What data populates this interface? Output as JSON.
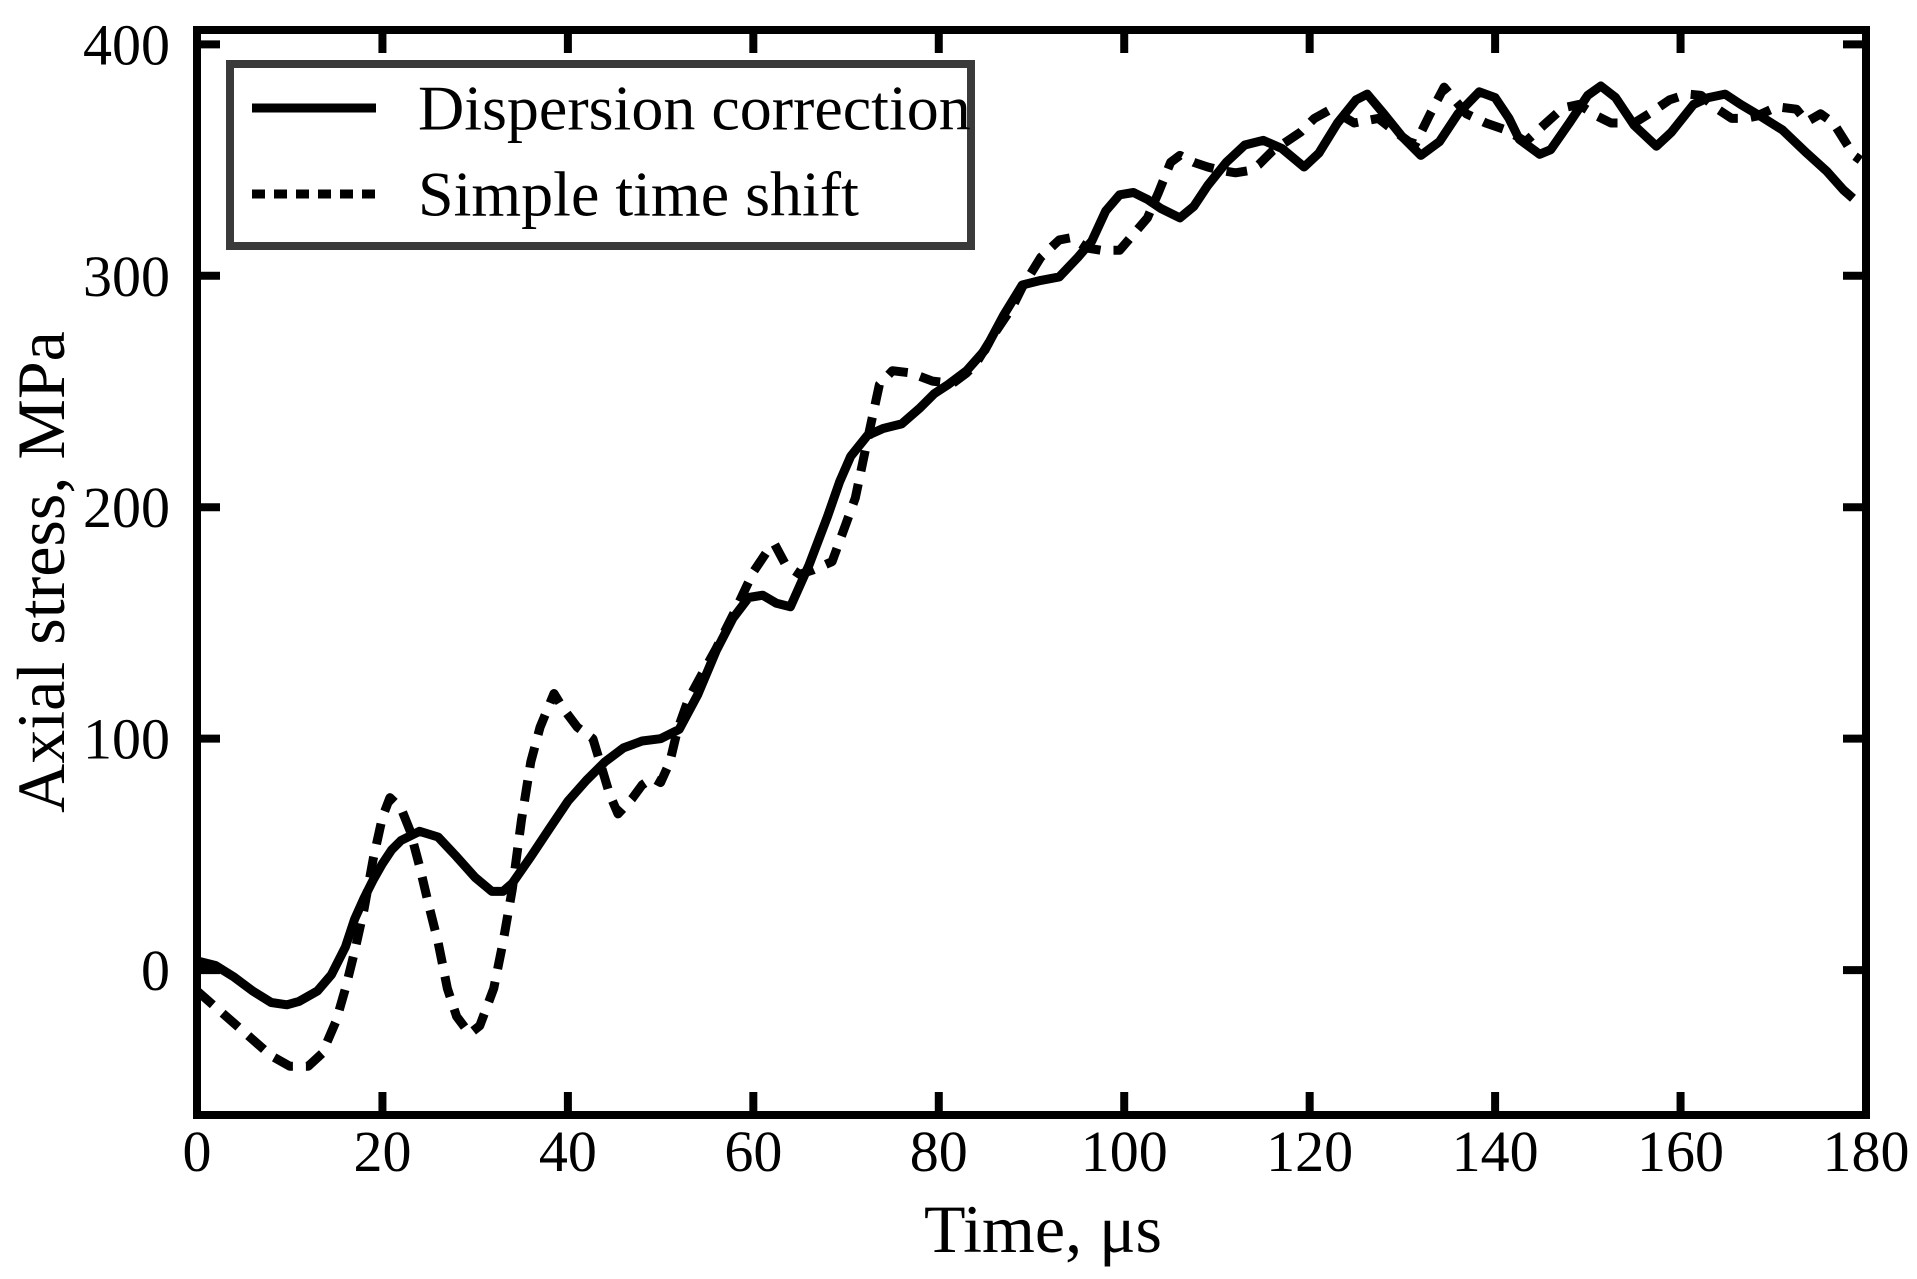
{
  "chart_data": {
    "type": "line",
    "title": "",
    "xlabel": "Time, μs",
    "ylabel": "Axial stress, MPa",
    "xlim": [
      0,
      180
    ],
    "ylim": [
      -62.6,
      406.2
    ],
    "xticks": [
      0,
      20,
      40,
      60,
      80,
      100,
      120,
      140,
      160,
      180
    ],
    "yticks": [
      0,
      100,
      200,
      300,
      400
    ],
    "grid": false,
    "background": "#ffffff",
    "axis_color": "#000000",
    "legend": {
      "position": "upper-left",
      "border_color": "#3a3a3a"
    },
    "series": [
      {
        "name": "Dispersion correction",
        "style": "solid",
        "color": "#000000",
        "points": [
          [
            0,
            4
          ],
          [
            2,
            2
          ],
          [
            4,
            -3
          ],
          [
            6,
            -9
          ],
          [
            8,
            -14
          ],
          [
            9.7,
            -15
          ],
          [
            11,
            -13.5
          ],
          [
            13,
            -9
          ],
          [
            14.5,
            -2
          ],
          [
            16,
            10
          ],
          [
            17,
            22
          ],
          [
            18,
            31
          ],
          [
            19,
            39
          ],
          [
            20,
            46
          ],
          [
            21,
            52
          ],
          [
            22,
            56
          ],
          [
            24,
            60
          ],
          [
            26,
            57.5
          ],
          [
            28,
            49
          ],
          [
            30,
            40
          ],
          [
            31.8,
            34
          ],
          [
            33,
            34
          ],
          [
            34,
            37.5
          ],
          [
            36,
            49
          ],
          [
            38,
            61
          ],
          [
            40,
            73
          ],
          [
            42,
            82
          ],
          [
            44,
            90
          ],
          [
            46,
            96
          ],
          [
            48,
            99
          ],
          [
            50,
            100
          ],
          [
            52,
            104
          ],
          [
            54,
            119
          ],
          [
            56,
            138
          ],
          [
            57.8,
            152
          ],
          [
            59.5,
            161
          ],
          [
            61,
            162
          ],
          [
            62.5,
            158.5
          ],
          [
            64,
            157
          ],
          [
            66,
            175
          ],
          [
            68,
            196
          ],
          [
            69.3,
            211
          ],
          [
            70.5,
            222
          ],
          [
            72.3,
            231
          ],
          [
            74,
            234
          ],
          [
            76,
            236
          ],
          [
            78,
            243
          ],
          [
            79.5,
            249
          ],
          [
            81,
            253
          ],
          [
            83,
            259
          ],
          [
            85,
            268
          ],
          [
            87,
            283
          ],
          [
            89,
            296
          ],
          [
            91,
            298
          ],
          [
            93,
            299.5
          ],
          [
            95,
            308
          ],
          [
            96.5,
            315
          ],
          [
            98,
            328
          ],
          [
            99.5,
            335
          ],
          [
            101,
            336
          ],
          [
            102.5,
            333
          ],
          [
            104,
            329
          ],
          [
            106,
            325
          ],
          [
            107.5,
            330
          ],
          [
            109,
            339
          ],
          [
            111,
            349
          ],
          [
            113,
            356.5
          ],
          [
            115,
            358.5
          ],
          [
            117,
            355
          ],
          [
            119.4,
            347
          ],
          [
            121,
            353
          ],
          [
            123,
            366
          ],
          [
            125,
            376
          ],
          [
            126.2,
            378.5
          ],
          [
            128,
            370
          ],
          [
            130,
            360
          ],
          [
            132,
            352
          ],
          [
            134,
            358
          ],
          [
            136,
            370
          ],
          [
            138.3,
            379.5
          ],
          [
            140,
            377
          ],
          [
            141.5,
            368
          ],
          [
            142.6,
            359
          ],
          [
            144.8,
            352.5
          ],
          [
            146,
            354.5
          ],
          [
            148,
            366
          ],
          [
            150,
            378
          ],
          [
            151.4,
            382
          ],
          [
            153,
            377
          ],
          [
            155,
            365
          ],
          [
            157.4,
            356
          ],
          [
            159,
            362
          ],
          [
            161.4,
            374
          ],
          [
            163,
            377
          ],
          [
            164.8,
            378.5
          ],
          [
            166.5,
            374
          ],
          [
            168.6,
            369
          ],
          [
            171,
            363
          ],
          [
            173.6,
            353
          ],
          [
            175.8,
            345
          ],
          [
            177.6,
            337
          ],
          [
            178.6,
            333.5
          ]
        ]
      },
      {
        "name": "Simple time shift",
        "style": "dashed",
        "color": "#000000",
        "points": [
          [
            0,
            -9
          ],
          [
            2,
            -16
          ],
          [
            4,
            -23
          ],
          [
            6,
            -30
          ],
          [
            8,
            -37
          ],
          [
            10,
            -41.5
          ],
          [
            12,
            -41.5
          ],
          [
            13.5,
            -36
          ],
          [
            15,
            -22
          ],
          [
            16,
            -8
          ],
          [
            17,
            8
          ],
          [
            18,
            26
          ],
          [
            19,
            48
          ],
          [
            20,
            66
          ],
          [
            20.8,
            74.5
          ],
          [
            22,
            70
          ],
          [
            23,
            60
          ],
          [
            24,
            45
          ],
          [
            25,
            28
          ],
          [
            26,
            12
          ],
          [
            27,
            -8
          ],
          [
            28,
            -20
          ],
          [
            29.4,
            -27.5
          ],
          [
            30.5,
            -24
          ],
          [
            32,
            -8
          ],
          [
            33,
            12
          ],
          [
            34,
            35
          ],
          [
            35,
            65
          ],
          [
            36,
            90
          ],
          [
            37,
            105
          ],
          [
            38.5,
            119.5
          ],
          [
            39.5,
            113
          ],
          [
            41,
            105
          ],
          [
            42.7,
            100
          ],
          [
            43.6,
            88
          ],
          [
            44.5,
            76
          ],
          [
            45.4,
            67.5
          ],
          [
            46.9,
            74
          ],
          [
            48,
            80
          ],
          [
            49.1,
            83
          ],
          [
            50,
            81
          ],
          [
            51,
            90
          ],
          [
            51.8,
            103.5
          ],
          [
            53,
            117
          ],
          [
            54.2,
            126
          ],
          [
            56,
            139
          ],
          [
            58,
            155
          ],
          [
            60,
            172
          ],
          [
            61.5,
            181
          ],
          [
            62.3,
            184
          ],
          [
            63.5,
            175
          ],
          [
            65,
            171
          ],
          [
            66.5,
            173
          ],
          [
            68.5,
            176.5
          ],
          [
            70,
            193
          ],
          [
            71,
            204
          ],
          [
            72.3,
            229
          ],
          [
            73.6,
            253
          ],
          [
            75,
            259
          ],
          [
            77,
            258
          ],
          [
            79.3,
            254.5
          ],
          [
            81.5,
            253.5
          ],
          [
            83,
            258
          ],
          [
            84,
            262
          ],
          [
            86,
            275
          ],
          [
            88,
            287
          ],
          [
            89,
            295
          ],
          [
            91,
            308
          ],
          [
            93,
            315.5
          ],
          [
            94.3,
            316.5
          ],
          [
            96,
            312
          ],
          [
            97.5,
            311
          ],
          [
            99.5,
            311
          ],
          [
            101,
            318
          ],
          [
            102.5,
            325
          ],
          [
            103.7,
            336
          ],
          [
            105,
            349
          ],
          [
            106,
            352
          ],
          [
            107.5,
            349
          ],
          [
            109,
            347
          ],
          [
            110.5,
            345.5
          ],
          [
            112,
            344.5
          ],
          [
            113.5,
            345.5
          ],
          [
            114.5,
            348
          ],
          [
            116,
            354
          ],
          [
            117.5,
            358
          ],
          [
            119,
            362
          ],
          [
            120.5,
            368
          ],
          [
            122.3,
            372
          ],
          [
            124.8,
            366
          ],
          [
            127.4,
            368
          ],
          [
            129,
            363
          ],
          [
            130.7,
            358
          ],
          [
            131.4,
            357
          ],
          [
            133,
            370
          ],
          [
            134.5,
            381.5
          ],
          [
            136.9,
            370
          ],
          [
            139,
            366
          ],
          [
            141.2,
            363
          ],
          [
            143.3,
            358
          ],
          [
            145.5,
            366
          ],
          [
            147.3,
            372.5
          ],
          [
            149,
            374
          ],
          [
            151,
            369
          ],
          [
            152.5,
            366
          ],
          [
            155,
            366
          ],
          [
            157,
            371
          ],
          [
            158.8,
            376
          ],
          [
            160.7,
            378.5
          ],
          [
            162.2,
            378
          ],
          [
            164,
            372
          ],
          [
            165.5,
            368
          ],
          [
            167,
            368
          ],
          [
            168.2,
            369
          ],
          [
            170.4,
            373
          ],
          [
            172.5,
            372
          ],
          [
            173.6,
            366.5
          ],
          [
            175.1,
            370
          ],
          [
            176.5,
            366
          ],
          [
            177.6,
            359
          ],
          [
            178.7,
            352
          ],
          [
            179.4,
            350
          ]
        ]
      }
    ]
  }
}
